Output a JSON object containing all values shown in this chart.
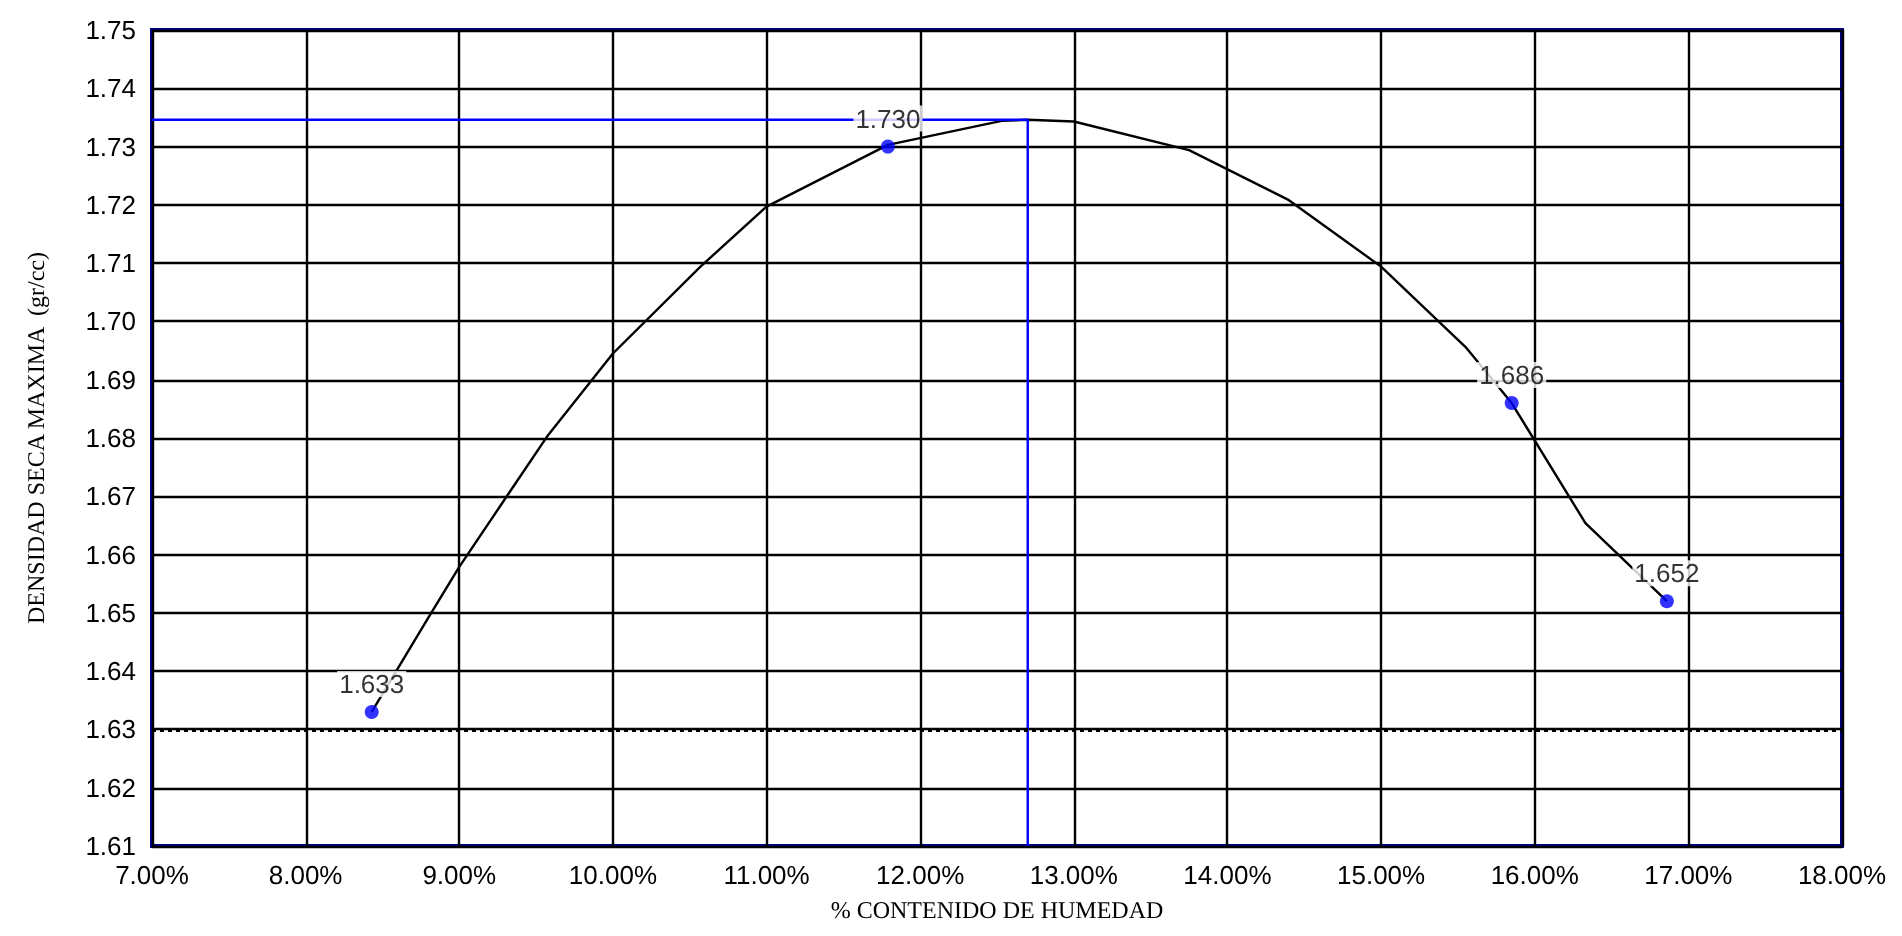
{
  "chart_data": {
    "type": "scatter",
    "xlabel": "% CONTENIDO DE HUMEDAD",
    "ylabel": "DENSIDAD SECA MAXIMA  (gr/cc)",
    "xlim": [
      7,
      18
    ],
    "ylim": [
      1.61,
      1.75
    ],
    "xticks": [
      {
        "value": 7,
        "label": "7.00%"
      },
      {
        "value": 8,
        "label": "8.00%"
      },
      {
        "value": 9,
        "label": "9.00%"
      },
      {
        "value": 10,
        "label": "10.00%"
      },
      {
        "value": 11,
        "label": "11.00%"
      },
      {
        "value": 12,
        "label": "12.00%"
      },
      {
        "value": 13,
        "label": "13.00%"
      },
      {
        "value": 14,
        "label": "14.00%"
      },
      {
        "value": 15,
        "label": "15.00%"
      },
      {
        "value": 16,
        "label": "16.00%"
      },
      {
        "value": 17,
        "label": "17.00%"
      },
      {
        "value": 18,
        "label": "18.00%"
      }
    ],
    "yticks": [
      1.61,
      1.62,
      1.63,
      1.64,
      1.65,
      1.66,
      1.67,
      1.68,
      1.69,
      {
        "value": 1.7,
        "label": "1.70"
      },
      1.71,
      1.72,
      1.73,
      1.74,
      1.75
    ],
    "grid": true,
    "series": [
      {
        "type": "line",
        "color": "#000000",
        "marker": "none",
        "x": [
          8.43,
          8.79,
          9.0,
          9.57,
          10.0,
          10.57,
          11.0,
          11.79,
          12.53,
          12.7,
          13.0,
          13.75,
          14.4,
          15.0,
          15.55,
          15.85,
          16.33,
          16.86
        ],
        "values": [
          1.633,
          1.6488,
          1.6579,
          1.6802,
          1.6945,
          1.7094,
          1.7197,
          1.7303,
          1.7344,
          1.7346,
          1.7343,
          1.7294,
          1.7208,
          1.7094,
          1.6956,
          1.686,
          1.6654,
          1.652
        ]
      },
      {
        "type": "line",
        "color": "#0000ff",
        "marker": "none",
        "x": [
          7,
          12.7,
          12.7
        ],
        "values": [
          1.7346,
          1.7346,
          1.61
        ]
      },
      {
        "color": "#0000ff",
        "marker": "circle",
        "x": [
          8.43,
          11.79,
          15.85,
          16.86
        ],
        "values": [
          1.633,
          1.73,
          1.686,
          1.652
        ],
        "value_labels": [
          "1.633",
          "1.730",
          "1.686",
          "1.652"
        ]
      }
    ],
    "ref_lines": [
      {
        "axis": "y",
        "value": 1.63,
        "color": "#000000",
        "line_style": "dotted"
      }
    ]
  }
}
